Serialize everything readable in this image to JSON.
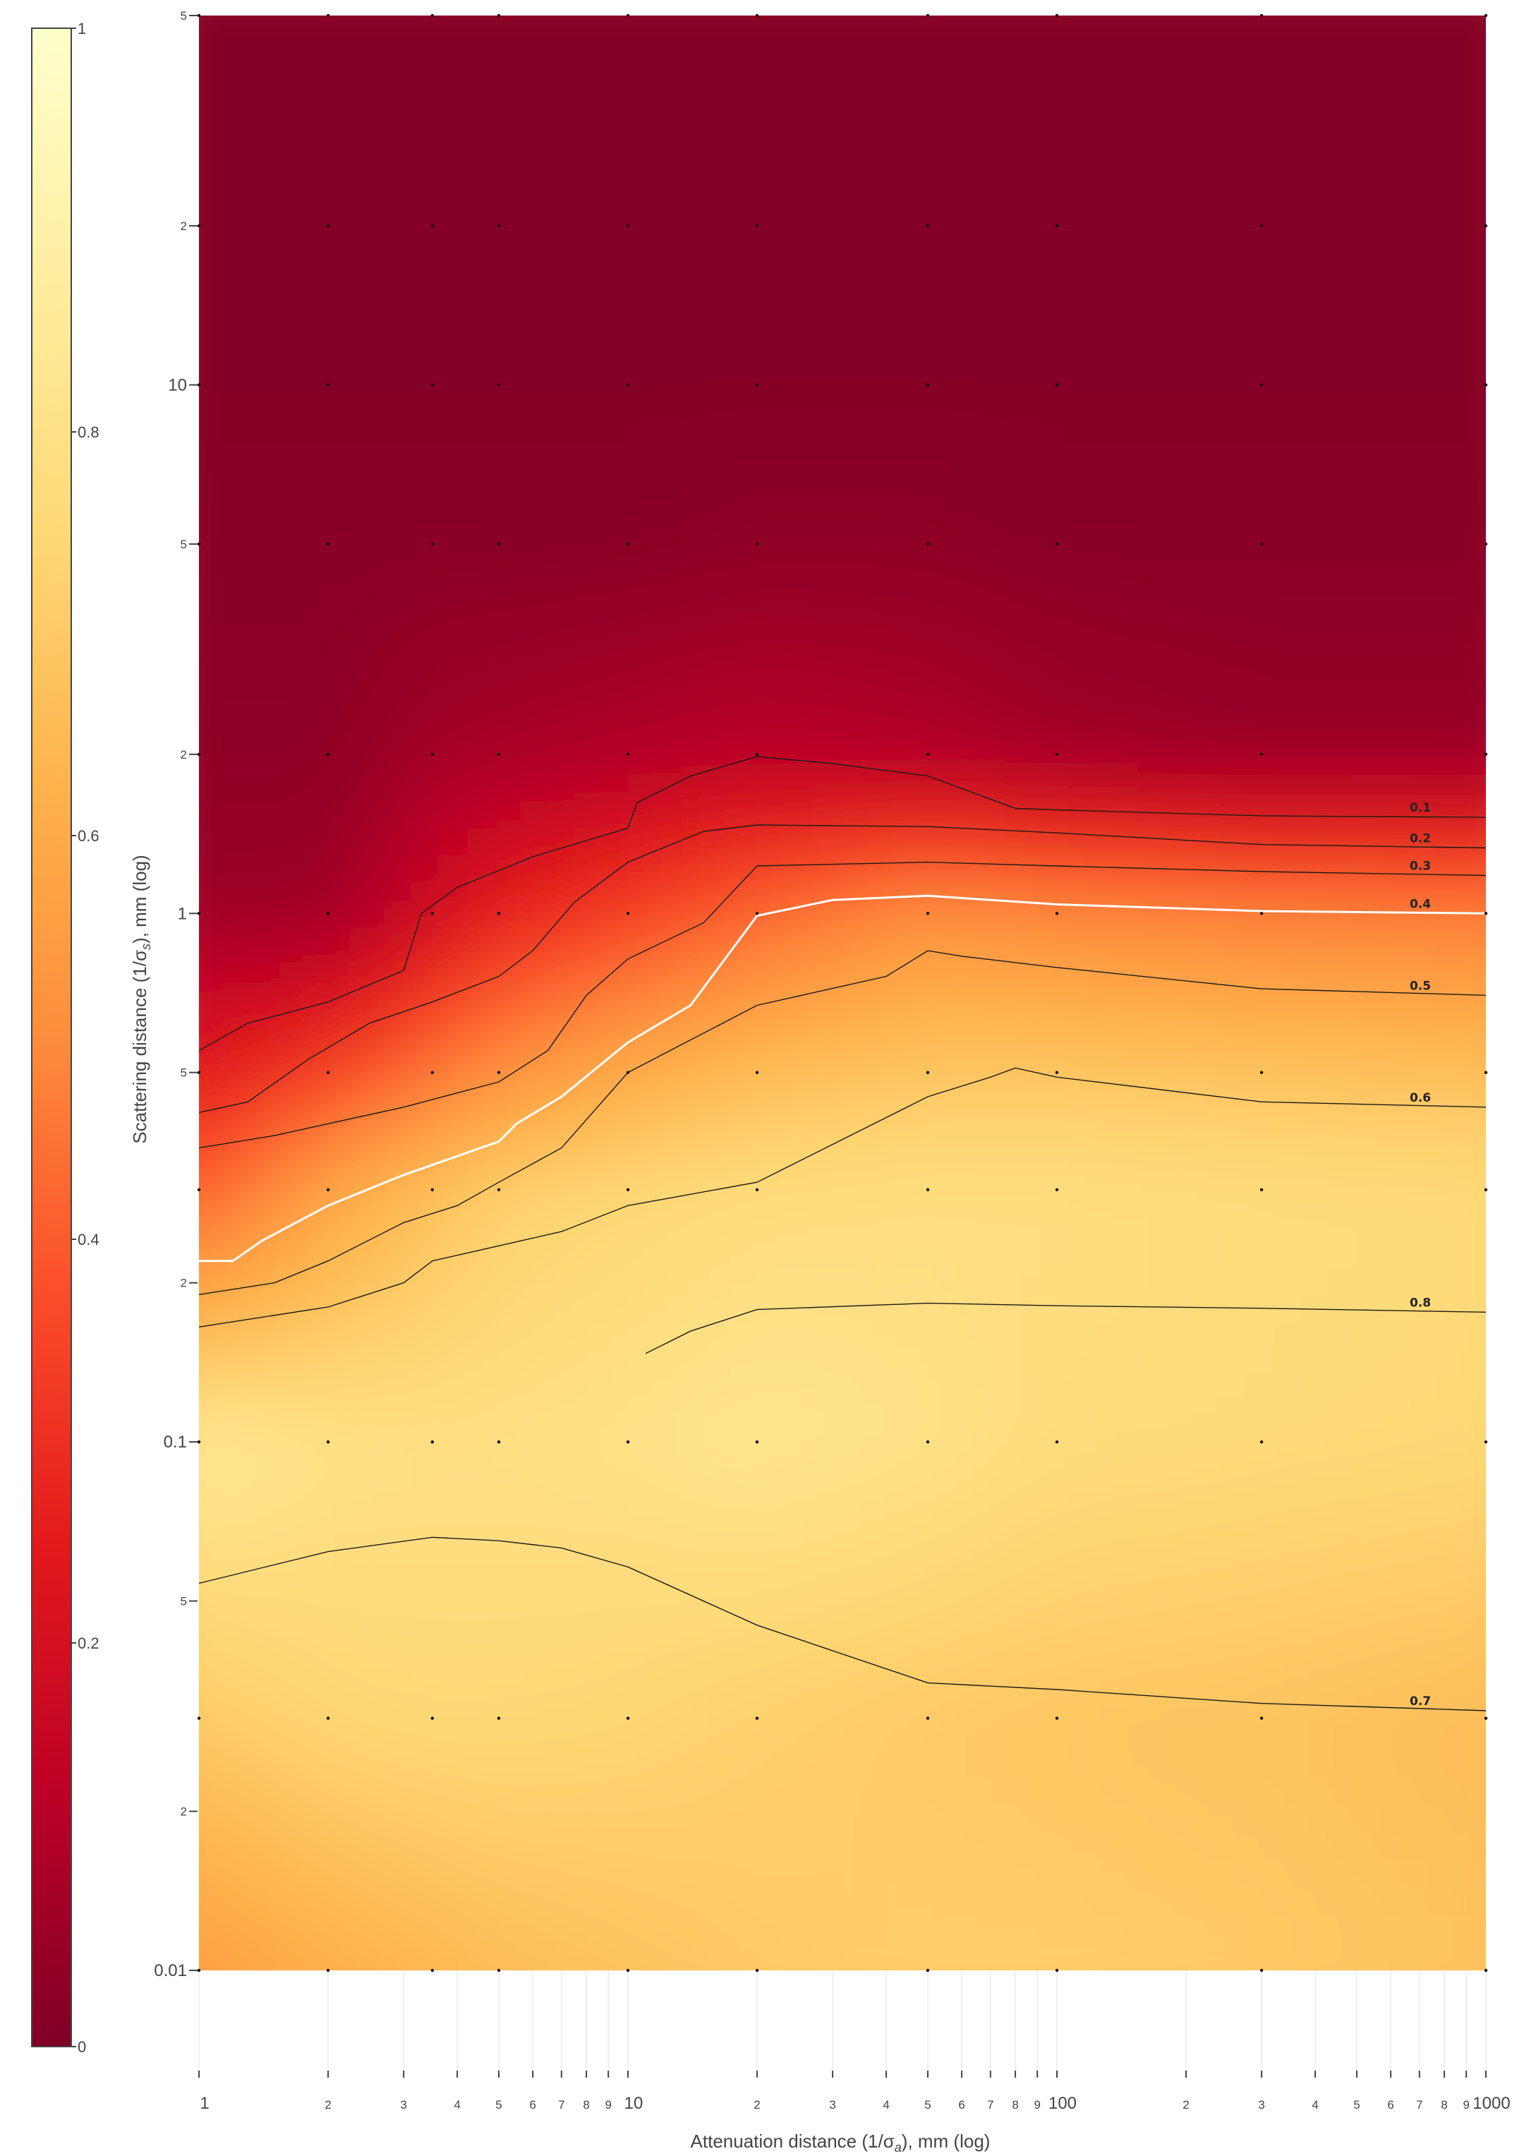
{
  "chart_data": {
    "type": "heatmap",
    "subtype": "contour heatmap with sample points",
    "x_axis": {
      "scale": "log",
      "range": [
        1,
        1000
      ],
      "unit_prefix": "Attenuation distance (1/σ",
      "unit_sub": "a",
      "unit_suffix": "), mm (log)",
      "tick_labels": [
        {
          "v": 1,
          "t": "1",
          "major": true
        },
        {
          "v": 2,
          "t": "2"
        },
        {
          "v": 3,
          "t": "3"
        },
        {
          "v": 4,
          "t": "4"
        },
        {
          "v": 5,
          "t": "5"
        },
        {
          "v": 6,
          "t": "6"
        },
        {
          "v": 7,
          "t": "7"
        },
        {
          "v": 8,
          "t": "8"
        },
        {
          "v": 9,
          "t": "9"
        },
        {
          "v": 10,
          "t": "10",
          "major": true
        },
        {
          "v": 20,
          "t": "2"
        },
        {
          "v": 30,
          "t": "3"
        },
        {
          "v": 40,
          "t": "4"
        },
        {
          "v": 50,
          "t": "5"
        },
        {
          "v": 60,
          "t": "6"
        },
        {
          "v": 70,
          "t": "7"
        },
        {
          "v": 80,
          "t": "8"
        },
        {
          "v": 90,
          "t": "9"
        },
        {
          "v": 100,
          "t": "100",
          "major": true
        },
        {
          "v": 200,
          "t": "2"
        },
        {
          "v": 300,
          "t": "3"
        },
        {
          "v": 400,
          "t": "4"
        },
        {
          "v": 500,
          "t": "5"
        },
        {
          "v": 600,
          "t": "6"
        },
        {
          "v": 700,
          "t": "7"
        },
        {
          "v": 800,
          "t": "8"
        },
        {
          "v": 900,
          "t": "9"
        },
        {
          "v": 1000,
          "t": "1000",
          "major": true
        }
      ]
    },
    "y_axis": {
      "scale": "log",
      "range": [
        0.01,
        50
      ],
      "unit_prefix": "Scattering distance (1/σ",
      "unit_sub": "s",
      "unit_suffix": "), mm (log)",
      "tick_labels": [
        {
          "v": 0.01,
          "t": "0.01",
          "major": true
        },
        {
          "v": 0.02,
          "t": "2"
        },
        {
          "v": 0.05,
          "t": "5"
        },
        {
          "v": 0.1,
          "t": "0.1",
          "major": true
        },
        {
          "v": 0.2,
          "t": "2"
        },
        {
          "v": 0.5,
          "t": "5"
        },
        {
          "v": 1,
          "t": "1",
          "major": true
        },
        {
          "v": 2,
          "t": "2"
        },
        {
          "v": 5,
          "t": "5"
        },
        {
          "v": 10,
          "t": "10",
          "major": true
        },
        {
          "v": 20,
          "t": "2"
        },
        {
          "v": 50,
          "t": "5"
        }
      ]
    },
    "colorbar": {
      "range": [
        0,
        1
      ],
      "tick_labels": [
        "0",
        "0.2",
        "0.4",
        "0.6",
        "0.8",
        "1"
      ],
      "colorscale": [
        "#800026",
        "#bd0026",
        "#e31a1c",
        "#fc4e2a",
        "#fd8d3c",
        "#feb24c",
        "#fed976",
        "#ffeda0",
        "#ffffcc"
      ]
    },
    "sample_x": [
      1,
      2,
      3.5,
      5,
      10,
      20,
      50,
      100,
      300,
      1000
    ],
    "sample_y": [
      0.01,
      0.03,
      0.1,
      0.3,
      0.5,
      1,
      2,
      5,
      10,
      20,
      50
    ],
    "z": [
      [
        0.56,
        0.61,
        0.64,
        0.66,
        0.68,
        0.7,
        0.71,
        0.71,
        0.7,
        0.68
      ],
      [
        0.7,
        0.74,
        0.75,
        0.75,
        0.74,
        0.72,
        0.7,
        0.69,
        0.68,
        0.66
      ],
      [
        0.84,
        0.8,
        0.79,
        0.79,
        0.8,
        0.82,
        0.8,
        0.77,
        0.76,
        0.75
      ],
      [
        0.4,
        0.58,
        0.67,
        0.72,
        0.75,
        0.77,
        0.78,
        0.78,
        0.77,
        0.76
      ],
      [
        0.24,
        0.34,
        0.45,
        0.52,
        0.6,
        0.66,
        0.69,
        0.69,
        0.68,
        0.67
      ],
      [
        0.06,
        0.06,
        0.18,
        0.26,
        0.34,
        0.42,
        0.52,
        0.5,
        0.48,
        0.47
      ],
      [
        0.03,
        0.03,
        0.07,
        0.08,
        0.1,
        0.12,
        0.1,
        0.07,
        0.05,
        0.05
      ],
      [
        0.02,
        0.02,
        0.02,
        0.02,
        0.02,
        0.03,
        0.03,
        0.02,
        0.02,
        0.02
      ],
      [
        0.01,
        0.01,
        0.01,
        0.01,
        0.01,
        0.01,
        0.01,
        0.01,
        0.01,
        0.01
      ],
      [
        0.01,
        0.01,
        0.01,
        0.01,
        0.01,
        0.01,
        0.01,
        0.01,
        0.01,
        0.01
      ],
      [
        0.01,
        0.01,
        0.01,
        0.01,
        0.01,
        0.01,
        0.01,
        0.01,
        0.01,
        0.01
      ]
    ],
    "contour_labels": [
      "0.1",
      "0.2",
      "0.3",
      "0.4",
      "0.5",
      "0.6",
      "0.7",
      "0.8"
    ],
    "contours": [
      {
        "level": 0.1,
        "points": [
          [
            1,
            0.55
          ],
          [
            1.3,
            0.62
          ],
          [
            2,
            0.68
          ],
          [
            3,
            0.78
          ],
          [
            3.3,
            1.0
          ],
          [
            4,
            1.12
          ],
          [
            6,
            1.28
          ],
          [
            10,
            1.45
          ],
          [
            10.5,
            1.62
          ],
          [
            14,
            1.82
          ],
          [
            20,
            1.98
          ],
          [
            30,
            1.92
          ],
          [
            50,
            1.82
          ],
          [
            80,
            1.58
          ],
          [
            100,
            1.57
          ],
          [
            300,
            1.53
          ],
          [
            1000,
            1.52
          ]
        ]
      },
      {
        "level": 0.2,
        "points": [
          [
            1,
            0.42
          ],
          [
            1.3,
            0.44
          ],
          [
            1.8,
            0.53
          ],
          [
            2.5,
            0.62
          ],
          [
            3.5,
            0.68
          ],
          [
            5,
            0.76
          ],
          [
            6,
            0.85
          ],
          [
            7.5,
            1.05
          ],
          [
            10,
            1.25
          ],
          [
            15,
            1.43
          ],
          [
            20,
            1.47
          ],
          [
            50,
            1.46
          ],
          [
            100,
            1.42
          ],
          [
            300,
            1.35
          ],
          [
            1000,
            1.33
          ]
        ]
      },
      {
        "level": 0.3,
        "points": [
          [
            1,
            0.36
          ],
          [
            1.5,
            0.38
          ],
          [
            2,
            0.4
          ],
          [
            3,
            0.43
          ],
          [
            5,
            0.48
          ],
          [
            6.5,
            0.55
          ],
          [
            8,
            0.7
          ],
          [
            10,
            0.82
          ],
          [
            15,
            0.96
          ],
          [
            20,
            1.23
          ],
          [
            50,
            1.25
          ],
          [
            100,
            1.23
          ],
          [
            300,
            1.2
          ],
          [
            1000,
            1.18
          ]
        ]
      },
      {
        "level": 0.4,
        "points": [
          [
            1,
            0.22
          ],
          [
            1.2,
            0.22
          ],
          [
            1.4,
            0.24
          ],
          [
            2,
            0.28
          ],
          [
            3,
            0.32
          ],
          [
            5,
            0.37
          ],
          [
            5.5,
            0.4
          ],
          [
            7,
            0.45
          ],
          [
            10,
            0.57
          ],
          [
            14,
            0.67
          ],
          [
            20,
            0.99
          ],
          [
            30,
            1.06
          ],
          [
            50,
            1.08
          ],
          [
            100,
            1.04
          ],
          [
            300,
            1.01
          ],
          [
            1000,
            1.0
          ]
        ]
      },
      {
        "level": 0.5,
        "points": [
          [
            1,
            0.19
          ],
          [
            1.5,
            0.2
          ],
          [
            2,
            0.22
          ],
          [
            3,
            0.26
          ],
          [
            4,
            0.28
          ],
          [
            5,
            0.31
          ],
          [
            7,
            0.36
          ],
          [
            10,
            0.5
          ],
          [
            20,
            0.67
          ],
          [
            40,
            0.76
          ],
          [
            50,
            0.85
          ],
          [
            60,
            0.83
          ],
          [
            100,
            0.79
          ],
          [
            300,
            0.72
          ],
          [
            1000,
            0.7
          ]
        ]
      },
      {
        "level": 0.6,
        "points": [
          [
            1,
            0.165
          ],
          [
            2,
            0.18
          ],
          [
            3,
            0.2
          ],
          [
            3.5,
            0.22
          ],
          [
            5,
            0.235
          ],
          [
            7,
            0.25
          ],
          [
            10,
            0.28
          ],
          [
            20,
            0.31
          ],
          [
            50,
            0.45
          ],
          [
            70,
            0.49
          ],
          [
            80,
            0.51
          ],
          [
            100,
            0.49
          ],
          [
            300,
            0.44
          ],
          [
            1000,
            0.43
          ]
        ]
      },
      {
        "level": 0.7,
        "points": [
          [
            1,
            0.054
          ],
          [
            2,
            0.062
          ],
          [
            3.5,
            0.066
          ],
          [
            5,
            0.065
          ],
          [
            7,
            0.063
          ],
          [
            10,
            0.058
          ],
          [
            20,
            0.045
          ],
          [
            50,
            0.035
          ],
          [
            100,
            0.034
          ],
          [
            300,
            0.032
          ],
          [
            1000,
            0.031
          ]
        ]
      },
      {
        "level": 0.8,
        "points": [
          [
            11,
            0.147
          ],
          [
            14,
            0.162
          ],
          [
            20,
            0.178
          ],
          [
            50,
            0.183
          ],
          [
            100,
            0.181
          ],
          [
            300,
            0.179
          ],
          [
            1000,
            0.176
          ]
        ]
      }
    ]
  }
}
